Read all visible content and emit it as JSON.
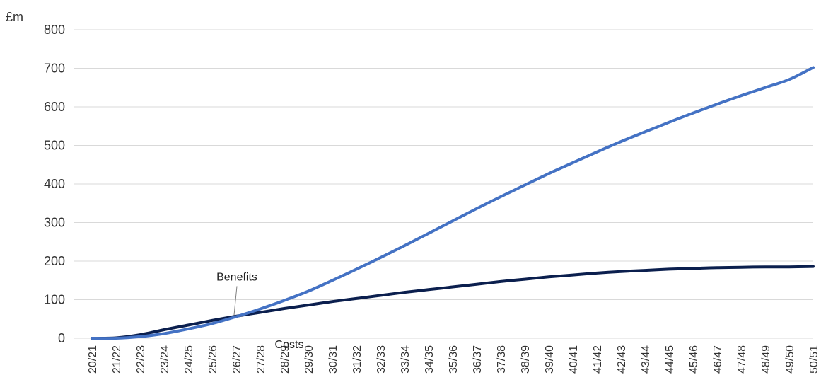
{
  "chart_data": {
    "type": "line",
    "unit_label": "£m",
    "ylim": [
      0,
      800
    ],
    "yticks": [
      0,
      100,
      200,
      300,
      400,
      500,
      600,
      700,
      800
    ],
    "grid": true,
    "categories": [
      "20/21",
      "21/22",
      "22/23",
      "23/24",
      "24/25",
      "25/26",
      "26/27",
      "27/28",
      "28/29",
      "29/30",
      "30/31",
      "31/32",
      "32/33",
      "33/34",
      "34/35",
      "35/36",
      "36/37",
      "37/38",
      "38/39",
      "39/40",
      "40/41",
      "41/42",
      "42/43",
      "43/44",
      "44/45",
      "45/46",
      "46/47",
      "47/48",
      "48/49",
      "49/50",
      "50/51"
    ],
    "series": [
      {
        "name": "Benefits",
        "color": "#4472C4",
        "values": [
          0,
          0,
          4,
          12,
          24,
          38,
          56,
          76,
          98,
          122,
          150,
          179,
          209,
          240,
          272,
          304,
          336,
          367,
          397,
          427,
          455,
          483,
          510,
          535,
          560,
          584,
          607,
          629,
          650,
          671,
          702
        ]
      },
      {
        "name": "Costs",
        "color": "#0B1F4E",
        "values": [
          0,
          1,
          9,
          22,
          34,
          46,
          57,
          67,
          77,
          86,
          95,
          103,
          111,
          119,
          126,
          133,
          140,
          147,
          153,
          159,
          164,
          169,
          173,
          176,
          179,
          181,
          183,
          184,
          185,
          185,
          186
        ]
      }
    ],
    "annotations": [
      {
        "text": "Benefits",
        "series": "Benefits",
        "at": "26/27"
      },
      {
        "text": "Costs",
        "series": "Costs",
        "at": "26/27"
      }
    ]
  }
}
